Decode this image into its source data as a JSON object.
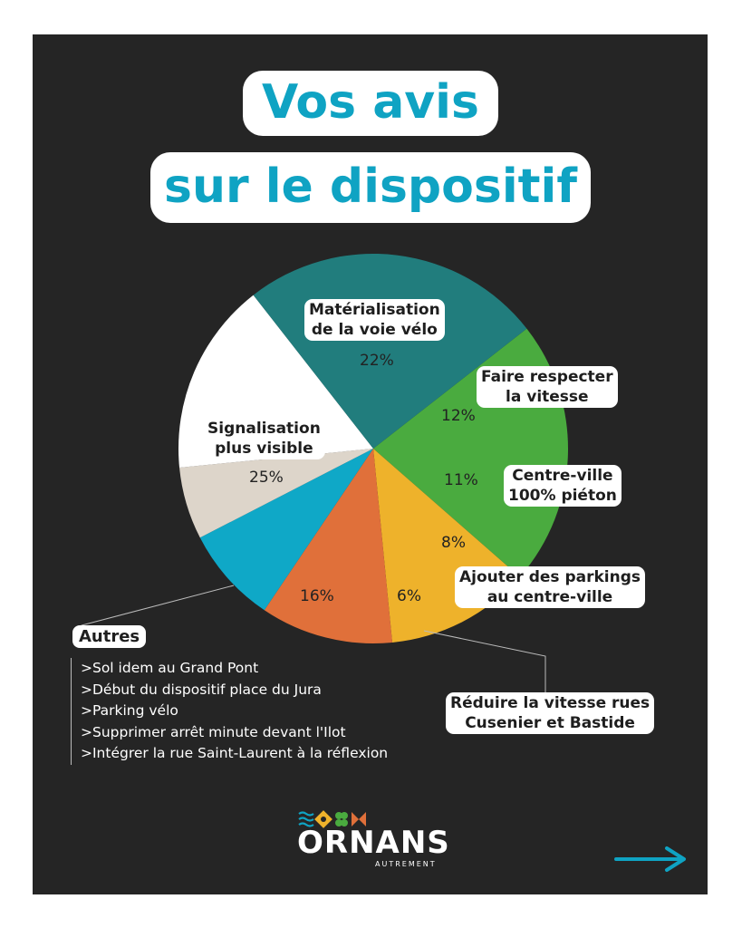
{
  "title": {
    "line1": "Vos avis",
    "line2": "sur le dispositif"
  },
  "chart_data": {
    "type": "pie",
    "slices": [
      {
        "label_line1": "Matérialisation",
        "label_line2": "de la voie vélo",
        "value": 22,
        "pct_text": "22%",
        "color": "#4aab3f"
      },
      {
        "label_line1": "Faire respecter",
        "label_line2": "la vitesse",
        "value": 12,
        "pct_text": "12%",
        "color": "#eeb22b"
      },
      {
        "label_line1": "Centre-ville",
        "label_line2": "100% piéton",
        "value": 11,
        "pct_text": "11%",
        "color": "#e0703a"
      },
      {
        "label_line1": "Ajouter des parkings",
        "label_line2": "au centre-ville",
        "value": 8,
        "pct_text": "8%",
        "color": "#0fa8c7"
      },
      {
        "label_line1": "Réduire la vitesse rues",
        "label_line2": "Cusenier et Bastide",
        "value": 6,
        "pct_text": "6%",
        "color": "#ddd5ca"
      },
      {
        "label_line1": "Autres",
        "label_line2": "",
        "value": 16,
        "pct_text": "16%",
        "color": "#ffffff"
      },
      {
        "label_line1": "Signalisation",
        "label_line2": "plus visible",
        "value": 25,
        "pct_text": "25%",
        "color": "#217d7d"
      }
    ]
  },
  "autres": {
    "title": "Autres",
    "items": [
      ">Sol idem au Grand Pont",
      ">Début du dispositif place du Jura",
      ">Parking vélo",
      ">Supprimer arrêt minute devant l'Ilot",
      ">Intégrer la rue Saint-Laurent à la réflexion"
    ]
  },
  "brand": {
    "name": "ORNANS",
    "tagline": "AUTREMENT",
    "accent": "#0fa3c3",
    "background": "#252525"
  }
}
